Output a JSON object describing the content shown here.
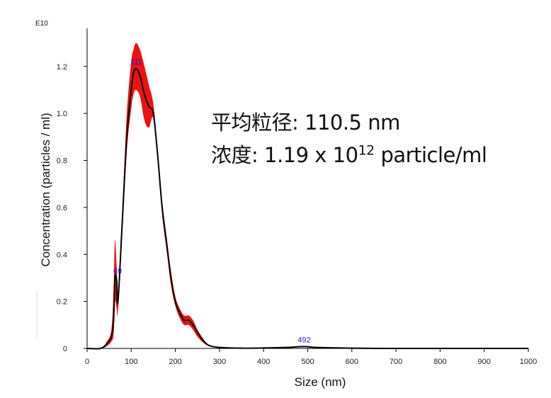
{
  "chart_data": {
    "type": "line",
    "y_exponent_label": "E10",
    "xlabel": "Size (nm)",
    "ylabel": "Concentration (particles / ml)",
    "xlim": [
      0,
      1000
    ],
    "ylim": [
      0,
      1.35
    ],
    "x_ticks": [
      "0",
      "100",
      "200",
      "300",
      "400",
      "500",
      "600",
      "700",
      "800",
      "900",
      "1000"
    ],
    "y_ticks": [
      "0",
      "0.2",
      "0.4",
      "0.6",
      "0.8",
      "1.0",
      "1.2"
    ],
    "series": [
      {
        "x": [
          0,
          30,
          45,
          55,
          60,
          63,
          67,
          70,
          80,
          90,
          100,
          105,
          111,
          120,
          130,
          140,
          150,
          160,
          170,
          180,
          190,
          200,
          210,
          220,
          230,
          240,
          250,
          260,
          270,
          280,
          300,
          350,
          400,
          450,
          492,
          520,
          600,
          700,
          800,
          900,
          1000
        ],
        "y": [
          0,
          0,
          0.02,
          0.05,
          0.12,
          0.3,
          0.29,
          0.2,
          0.55,
          0.9,
          1.1,
          1.17,
          1.19,
          1.16,
          1.08,
          1.03,
          1.0,
          0.82,
          0.6,
          0.45,
          0.3,
          0.2,
          0.15,
          0.12,
          0.12,
          0.1,
          0.07,
          0.04,
          0.02,
          0.01,
          0.004,
          0.001,
          0.002,
          0.004,
          0.008,
          0.004,
          0.001,
          0,
          0,
          0,
          0
        ],
        "band_upper": [
          0,
          0,
          0.03,
          0.08,
          0.25,
          0.46,
          0.35,
          0.24,
          0.6,
          1.0,
          1.22,
          1.27,
          1.3,
          1.27,
          1.2,
          1.12,
          1.04,
          0.85,
          0.63,
          0.48,
          0.33,
          0.22,
          0.17,
          0.14,
          0.14,
          0.12,
          0.08,
          0.05,
          0.025,
          0.012,
          0.005,
          0.0015,
          0.0025,
          0.005,
          0.01,
          0.005,
          0.0015,
          0,
          0,
          0,
          0
        ],
        "band_lower": [
          0,
          0,
          0.01,
          0.03,
          0.06,
          0.2,
          0.17,
          0.16,
          0.5,
          0.84,
          1.02,
          1.08,
          1.1,
          1.07,
          0.97,
          0.94,
          0.98,
          0.8,
          0.57,
          0.42,
          0.27,
          0.18,
          0.13,
          0.1,
          0.1,
          0.08,
          0.05,
          0.03,
          0.015,
          0.008,
          0.003,
          0.0005,
          0.0015,
          0.003,
          0.006,
          0.003,
          0.0005,
          0,
          0,
          0,
          0
        ],
        "line_color": "#000000",
        "band_color": "#ee1111"
      }
    ],
    "peak_labels": [
      {
        "x": 69,
        "y": 0.3,
        "text": "69"
      },
      {
        "x": 111,
        "y": 1.19,
        "text": "111"
      },
      {
        "x": 492,
        "y": 0.008,
        "text": "492"
      }
    ],
    "peak_label_color": "#1e1ed8"
  },
  "annotation": {
    "line1": "平均粒径: 110.5 nm",
    "line2_prefix": "浓度: 1.19 x 10",
    "line2_exp": "12",
    "line2_suffix": " particle/ml"
  }
}
